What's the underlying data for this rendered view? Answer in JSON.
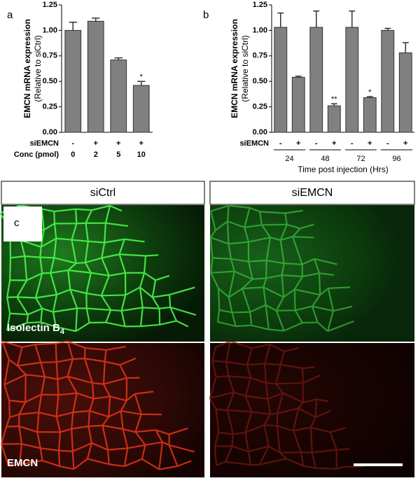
{
  "chart_data": [
    {
      "type": "bar",
      "panel": "a",
      "y_label": "EMCN mRNA expression",
      "y_sublabel": "(Relative to siCtrl)",
      "categories": [
        "0",
        "2",
        "5",
        "10"
      ],
      "treatment": [
        "-",
        "+",
        "+",
        "+"
      ],
      "row_labels": [
        "siEMCN",
        "Conc (pmol)"
      ],
      "values": [
        1.0,
        1.09,
        0.71,
        0.46
      ],
      "errors": [
        0.08,
        0.03,
        0.02,
        0.04
      ],
      "significance": [
        null,
        null,
        null,
        "*"
      ],
      "color": "#808080",
      "ylim": [
        0,
        1.25
      ],
      "yticks": [
        {
          "value": 0,
          "label": "0.00"
        },
        {
          "value": 0.25,
          "label": "0.25"
        },
        {
          "value": 0.5,
          "label": "0.50"
        },
        {
          "value": 0.75,
          "label": "0.75"
        },
        {
          "value": 1,
          "label": "1.00"
        },
        {
          "value": 1.25,
          "label": "1.25"
        }
      ]
    },
    {
      "type": "bar",
      "panel": "b",
      "y_label": "EMCN mRNA expression",
      "y_sublabel": "(Relative to siCtrl)",
      "categories": [
        "-",
        "+",
        "-",
        "+",
        "-",
        "+",
        "-",
        "+"
      ],
      "row_labels": [
        "siEMCN"
      ],
      "groups": [
        "24",
        "48",
        "72",
        "96"
      ],
      "x_label": "Time post injection (Hrs)",
      "values": [
        1.03,
        0.54,
        1.03,
        0.26,
        1.03,
        0.34,
        1.0,
        0.78
      ],
      "errors": [
        0.14,
        0.01,
        0.16,
        0.02,
        0.16,
        0.01,
        0.02,
        0.1
      ],
      "significance": [
        null,
        null,
        null,
        "**",
        null,
        "*",
        null,
        null
      ],
      "color": "#808080",
      "ylim": [
        0,
        1.25
      ],
      "yticks": [
        {
          "value": 0,
          "label": "0.00"
        },
        {
          "value": 0.25,
          "label": "0.25"
        },
        {
          "value": 0.5,
          "label": "0.50"
        },
        {
          "value": 0.75,
          "label": "0.75"
        },
        {
          "value": 1,
          "label": "1.00"
        },
        {
          "value": 1.25,
          "label": "1.25"
        }
      ]
    }
  ],
  "images": {
    "panel": "c",
    "columns": [
      "siCtrl",
      "siEMCN"
    ],
    "rows": [
      {
        "label": "Isolectin B",
        "subscript": "4"
      },
      {
        "label": "EMCN"
      }
    ]
  }
}
